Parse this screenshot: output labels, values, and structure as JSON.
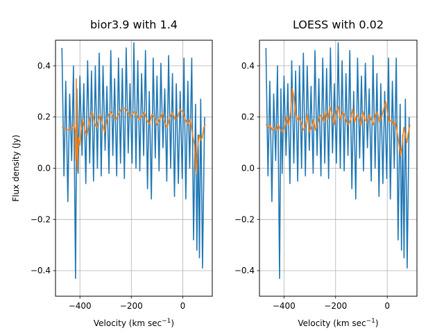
{
  "chart_data": [
    {
      "type": "line",
      "title": "bior3.9 with 1.4",
      "xlabel": "Velocity (km sec",
      "xlabel_sup": "−1",
      "xlabel_tail": ")",
      "ylabel": "Flux density (Jy)",
      "xlim": [
        -495,
        115
      ],
      "ylim": [
        -0.5,
        0.5
      ],
      "xticks": [
        -400,
        -200,
        0
      ],
      "xtick_labels": [
        "−400",
        "−200",
        "0"
      ],
      "yticks": [
        -0.4,
        -0.2,
        0.0,
        0.2,
        0.4
      ],
      "ytick_labels": [
        "−0.4",
        "−0.2",
        "0.0",
        "0.2",
        "0.4"
      ],
      "grid": true,
      "series": [
        {
          "role": "raw",
          "color": "#1f77b4",
          "x": [
            -470,
            -462,
            -455,
            -447,
            -440,
            -432,
            -425,
            -417,
            -412,
            -407,
            -400,
            -392,
            -385,
            -377,
            -370,
            -362,
            -355,
            -347,
            -340,
            -332,
            -325,
            -317,
            -310,
            -302,
            -295,
            -287,
            -280,
            -272,
            -265,
            -257,
            -250,
            -242,
            -235,
            -227,
            -220,
            -212,
            -205,
            -197,
            -190,
            -182,
            -175,
            -167,
            -160,
            -152,
            -145,
            -137,
            -130,
            -122,
            -115,
            -107,
            -100,
            -92,
            -85,
            -77,
            -70,
            -62,
            -55,
            -47,
            -40,
            -32,
            -25,
            -17,
            -10,
            -2,
            5,
            12,
            20,
            27,
            35,
            42,
            50,
            55,
            60,
            65,
            70,
            77,
            85
          ],
          "y": [
            0.47,
            -0.03,
            0.34,
            -0.13,
            0.29,
            0.03,
            0.4,
            -0.43,
            0.31,
            -0.02,
            0.36,
            0.05,
            0.33,
            -0.06,
            0.42,
            0.02,
            0.38,
            -0.05,
            0.4,
            0.0,
            0.45,
            -0.03,
            0.4,
            0.07,
            0.32,
            -0.02,
            0.46,
            0.05,
            0.35,
            -0.03,
            0.43,
            0.02,
            0.39,
            -0.04,
            0.47,
            0.06,
            0.33,
            0.02,
            0.49,
            0.0,
            0.42,
            -0.01,
            0.37,
            0.05,
            0.46,
            -0.08,
            0.3,
            -0.12,
            0.43,
            0.04,
            0.36,
            -0.01,
            0.41,
            0.08,
            0.31,
            -0.05,
            0.44,
            0.0,
            0.37,
            -0.11,
            0.33,
            -0.06,
            0.3,
            -0.04,
            0.43,
            -0.12,
            0.34,
            0.0,
            0.43,
            -0.28,
            0.25,
            -0.32,
            0.13,
            -0.35,
            0.27,
            -0.39,
            0.2
          ]
        },
        {
          "role": "smoothed",
          "color": "#ff7f0e",
          "x": [
            -470,
            -460,
            -450,
            -440,
            -430,
            -424,
            -419,
            -416,
            -414,
            -412,
            -410,
            -408,
            -405,
            -400,
            -395,
            -390,
            -384,
            -378,
            -372,
            -366,
            -360,
            -352,
            -344,
            -336,
            -328,
            -320,
            -312,
            -304,
            -296,
            -288,
            -280,
            -270,
            -260,
            -250,
            -240,
            -230,
            -220,
            -210,
            -200,
            -190,
            -180,
            -170,
            -160,
            -150,
            -140,
            -130,
            -120,
            -110,
            -100,
            -90,
            -80,
            -70,
            -60,
            -50,
            -40,
            -30,
            -20,
            -10,
            0,
            10,
            20,
            30,
            40,
            46,
            52,
            58,
            64,
            70,
            76,
            82,
            88
          ],
          "y": [
            0.16,
            0.155,
            0.15,
            0.15,
            0.16,
            0.17,
            0.15,
            0.03,
            0.35,
            0.1,
            -0.01,
            0.07,
            0.12,
            0.09,
            0.15,
            0.19,
            0.17,
            0.14,
            0.13,
            0.17,
            0.2,
            0.22,
            0.18,
            0.16,
            0.19,
            0.21,
            0.17,
            0.14,
            0.18,
            0.21,
            0.22,
            0.2,
            0.19,
            0.21,
            0.23,
            0.235,
            0.23,
            0.21,
            0.2,
            0.22,
            0.215,
            0.19,
            0.2,
            0.22,
            0.19,
            0.17,
            0.21,
            0.2,
            0.17,
            0.19,
            0.215,
            0.18,
            0.16,
            0.2,
            0.22,
            0.19,
            0.2,
            0.23,
            0.22,
            0.19,
            0.17,
            0.19,
            0.12,
            0.09,
            -0.02,
            0.08,
            0.13,
            0.11,
            0.12,
            0.16,
            0.17
          ]
        }
      ]
    },
    {
      "type": "line",
      "title": "LOESS with 0.02",
      "xlabel": "Velocity (km sec",
      "xlabel_sup": "−1",
      "xlabel_tail": ")",
      "ylabel": "",
      "xlim": [
        -495,
        115
      ],
      "ylim": [
        -0.5,
        0.5
      ],
      "xticks": [
        -400,
        -200,
        0
      ],
      "xtick_labels": [
        "−400",
        "−200",
        "0"
      ],
      "yticks": [
        -0.4,
        -0.2,
        0.0,
        0.2,
        0.4
      ],
      "ytick_labels": [
        "−0.4",
        "−0.2",
        "0.0",
        "0.2",
        "0.4"
      ],
      "grid": true,
      "series": [
        {
          "role": "raw",
          "color": "#1f77b4",
          "x": [
            -470,
            -462,
            -455,
            -447,
            -440,
            -432,
            -425,
            -417,
            -412,
            -407,
            -400,
            -392,
            -385,
            -377,
            -370,
            -362,
            -355,
            -347,
            -340,
            -332,
            -325,
            -317,
            -310,
            -302,
            -295,
            -287,
            -280,
            -272,
            -265,
            -257,
            -250,
            -242,
            -235,
            -227,
            -220,
            -212,
            -205,
            -197,
            -190,
            -182,
            -175,
            -167,
            -160,
            -152,
            -145,
            -137,
            -130,
            -122,
            -115,
            -107,
            -100,
            -92,
            -85,
            -77,
            -70,
            -62,
            -55,
            -47,
            -40,
            -32,
            -25,
            -17,
            -10,
            -2,
            5,
            12,
            20,
            27,
            35,
            42,
            50,
            55,
            60,
            65,
            70,
            77,
            85
          ],
          "y": [
            0.47,
            -0.03,
            0.34,
            -0.13,
            0.29,
            0.03,
            0.4,
            -0.43,
            0.31,
            -0.02,
            0.36,
            0.05,
            0.33,
            -0.06,
            0.42,
            0.02,
            0.38,
            -0.05,
            0.4,
            0.0,
            0.45,
            -0.03,
            0.4,
            0.07,
            0.32,
            -0.02,
            0.46,
            0.05,
            0.35,
            -0.03,
            0.43,
            0.02,
            0.39,
            -0.04,
            0.47,
            0.06,
            0.33,
            0.02,
            0.49,
            0.0,
            0.42,
            -0.01,
            0.37,
            0.05,
            0.46,
            -0.08,
            0.3,
            -0.12,
            0.43,
            0.04,
            0.36,
            -0.01,
            0.41,
            0.08,
            0.31,
            -0.05,
            0.44,
            0.0,
            0.37,
            -0.11,
            0.33,
            -0.06,
            0.3,
            -0.04,
            0.43,
            -0.12,
            0.34,
            0.0,
            0.43,
            -0.28,
            0.25,
            -0.32,
            0.13,
            -0.35,
            0.27,
            -0.39,
            0.2
          ]
        },
        {
          "role": "smoothed",
          "color": "#ff7f0e",
          "x": [
            -470,
            -462,
            -454,
            -446,
            -438,
            -430,
            -422,
            -414,
            -406,
            -398,
            -390,
            -382,
            -374,
            -368,
            -362,
            -356,
            -350,
            -342,
            -334,
            -326,
            -318,
            -310,
            -302,
            -294,
            -286,
            -278,
            -270,
            -262,
            -254,
            -246,
            -238,
            -230,
            -222,
            -214,
            -206,
            -198,
            -190,
            -182,
            -174,
            -166,
            -158,
            -150,
            -142,
            -134,
            -126,
            -118,
            -110,
            -102,
            -94,
            -86,
            -78,
            -70,
            -62,
            -54,
            -46,
            -38,
            -30,
            -22,
            -14,
            -6,
            0,
            8,
            16,
            24,
            32,
            40,
            46,
            52,
            58,
            64,
            70,
            76,
            82,
            88
          ],
          "y": [
            0.17,
            0.16,
            0.17,
            0.15,
            0.16,
            0.15,
            0.17,
            0.15,
            0.14,
            0.16,
            0.2,
            0.17,
            0.22,
            0.31,
            0.28,
            0.22,
            0.19,
            0.2,
            0.18,
            0.15,
            0.16,
            0.21,
            0.14,
            0.16,
            0.19,
            0.15,
            0.17,
            0.2,
            0.21,
            0.18,
            0.22,
            0.19,
            0.24,
            0.21,
            0.17,
            0.22,
            0.24,
            0.19,
            0.22,
            0.21,
            0.18,
            0.17,
            0.19,
            0.23,
            0.18,
            0.21,
            0.2,
            0.17,
            0.22,
            0.19,
            0.18,
            0.21,
            0.19,
            0.17,
            0.21,
            0.22,
            0.18,
            0.2,
            0.23,
            0.26,
            0.22,
            0.18,
            0.19,
            0.17,
            0.18,
            0.13,
            0.09,
            0.05,
            0.09,
            0.16,
            0.13,
            0.1,
            0.14,
            0.17
          ]
        }
      ]
    }
  ]
}
